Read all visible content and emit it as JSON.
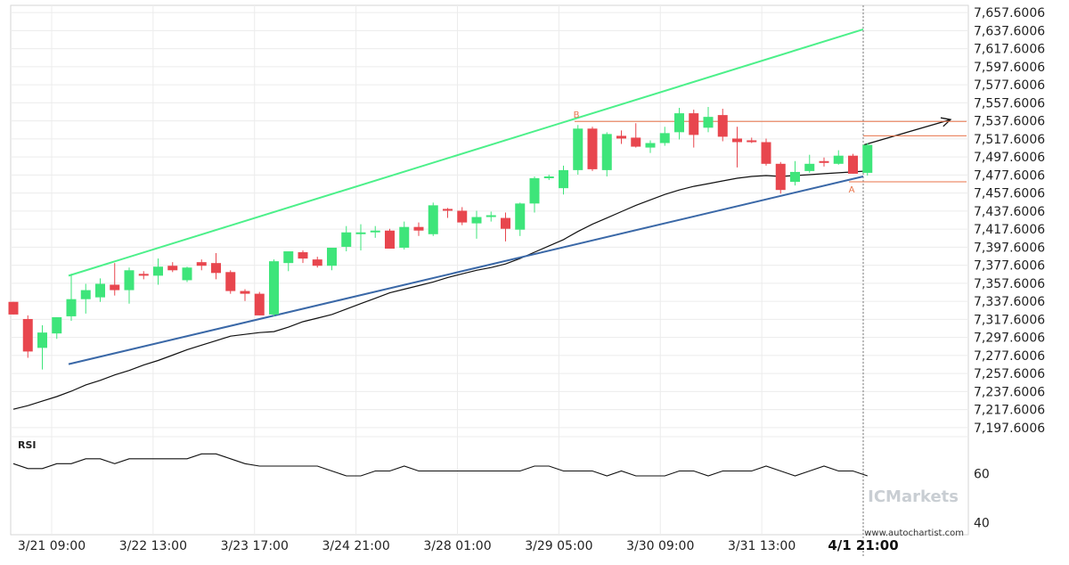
{
  "chart_data": {
    "type": "candlestick",
    "instrument_timeframe_note": "",
    "y_axis": {
      "ticks": [
        "7,657.6006",
        "7,637.6006",
        "7,617.6006",
        "7,597.6006",
        "7,577.6006",
        "7,557.6006",
        "7,537.6006",
        "7,517.6006",
        "7,497.6006",
        "7,477.6006",
        "7,457.6006",
        "7,437.6006",
        "7,417.6006",
        "7,397.6006",
        "7,377.6006",
        "7,357.6006",
        "7,337.6006",
        "7,317.6006",
        "7,297.6006",
        "7,277.6006",
        "7,257.6006",
        "7,237.6006",
        "7,217.6006",
        "7,197.6006"
      ],
      "range": [
        7187.6,
        7665.6
      ],
      "grid": true
    },
    "x_axis": {
      "ticks": [
        "3/21 09:00",
        "3/22 13:00",
        "3/23 17:00",
        "3/24 21:00",
        "3/28 01:00",
        "3/29 05:00",
        "3/30 09:00",
        "3/31 13:00",
        "4/1 21:00"
      ],
      "highlighted_tick": "4/1 21:00"
    },
    "candles": [
      {
        "o": 7337,
        "h": 7337,
        "l": 7323,
        "c": 7323
      },
      {
        "o": 7318,
        "h": 7322,
        "l": 7275,
        "c": 7282
      },
      {
        "o": 7286,
        "h": 7311,
        "l": 7262,
        "c": 7303
      },
      {
        "o": 7302,
        "h": 7320,
        "l": 7296,
        "c": 7320
      },
      {
        "o": 7321,
        "h": 7368,
        "l": 7316,
        "c": 7340
      },
      {
        "o": 7340,
        "h": 7357,
        "l": 7324,
        "c": 7350
      },
      {
        "o": 7342,
        "h": 7363,
        "l": 7337,
        "c": 7357
      },
      {
        "o": 7356,
        "h": 7380,
        "l": 7344,
        "c": 7350
      },
      {
        "o": 7350,
        "h": 7375,
        "l": 7335,
        "c": 7372
      },
      {
        "o": 7368,
        "h": 7371,
        "l": 7362,
        "c": 7366
      },
      {
        "o": 7366,
        "h": 7385,
        "l": 7356,
        "c": 7376
      },
      {
        "o": 7377,
        "h": 7381,
        "l": 7370,
        "c": 7372
      },
      {
        "o": 7361,
        "h": 7376,
        "l": 7359,
        "c": 7375
      },
      {
        "o": 7381,
        "h": 7384,
        "l": 7372,
        "c": 7377
      },
      {
        "o": 7380,
        "h": 7391,
        "l": 7362,
        "c": 7369
      },
      {
        "o": 7370,
        "h": 7372,
        "l": 7346,
        "c": 7349
      },
      {
        "o": 7349,
        "h": 7351,
        "l": 7338,
        "c": 7346
      },
      {
        "o": 7346,
        "h": 7348,
        "l": 7322,
        "c": 7322
      },
      {
        "o": 7323,
        "h": 7384,
        "l": 7321,
        "c": 7382
      },
      {
        "o": 7380,
        "h": 7391,
        "l": 7371,
        "c": 7393
      },
      {
        "o": 7392,
        "h": 7394,
        "l": 7380,
        "c": 7385
      },
      {
        "o": 7384,
        "h": 7387,
        "l": 7375,
        "c": 7377
      },
      {
        "o": 7377,
        "h": 7397,
        "l": 7372,
        "c": 7397
      },
      {
        "o": 7398,
        "h": 7421,
        "l": 7393,
        "c": 7414
      },
      {
        "o": 7414,
        "h": 7423,
        "l": 7394,
        "c": 7414
      },
      {
        "o": 7416,
        "h": 7421,
        "l": 7408,
        "c": 7416
      },
      {
        "o": 7416,
        "h": 7418,
        "l": 7396,
        "c": 7396
      },
      {
        "o": 7397,
        "h": 7426,
        "l": 7395,
        "c": 7420
      },
      {
        "o": 7420,
        "h": 7425,
        "l": 7410,
        "c": 7416
      },
      {
        "o": 7412,
        "h": 7447,
        "l": 7410,
        "c": 7444
      },
      {
        "o": 7440,
        "h": 7441,
        "l": 7430,
        "c": 7438
      },
      {
        "o": 7438,
        "h": 7442,
        "l": 7422,
        "c": 7425
      },
      {
        "o": 7424,
        "h": 7438,
        "l": 7407,
        "c": 7431
      },
      {
        "o": 7433,
        "h": 7437,
        "l": 7426,
        "c": 7433
      },
      {
        "o": 7430,
        "h": 7436,
        "l": 7404,
        "c": 7418
      },
      {
        "o": 7417,
        "h": 7447,
        "l": 7410,
        "c": 7446
      },
      {
        "o": 7446,
        "h": 7476,
        "l": 7436,
        "c": 7474
      },
      {
        "o": 7475,
        "h": 7478,
        "l": 7472,
        "c": 7476
      },
      {
        "o": 7463,
        "h": 7488,
        "l": 7456,
        "c": 7483
      },
      {
        "o": 7483,
        "h": 7533,
        "l": 7478,
        "c": 7529
      },
      {
        "o": 7529,
        "h": 7531,
        "l": 7482,
        "c": 7484
      },
      {
        "o": 7483,
        "h": 7525,
        "l": 7476,
        "c": 7523
      },
      {
        "o": 7521,
        "h": 7527,
        "l": 7512,
        "c": 7518
      },
      {
        "o": 7519,
        "h": 7535,
        "l": 7508,
        "c": 7509
      },
      {
        "o": 7508,
        "h": 7516,
        "l": 7502,
        "c": 7513
      },
      {
        "o": 7513,
        "h": 7531,
        "l": 7510,
        "c": 7524
      },
      {
        "o": 7525,
        "h": 7552,
        "l": 7517,
        "c": 7546
      },
      {
        "o": 7546,
        "h": 7550,
        "l": 7508,
        "c": 7522
      },
      {
        "o": 7530,
        "h": 7553,
        "l": 7525,
        "c": 7542
      },
      {
        "o": 7544,
        "h": 7551,
        "l": 7515,
        "c": 7520
      },
      {
        "o": 7518,
        "h": 7531,
        "l": 7486,
        "c": 7514
      },
      {
        "o": 7516,
        "h": 7519,
        "l": 7513,
        "c": 7514
      },
      {
        "o": 7514,
        "h": 7518,
        "l": 7488,
        "c": 7490
      },
      {
        "o": 7490,
        "h": 7492,
        "l": 7457,
        "c": 7461
      },
      {
        "o": 7470,
        "h": 7493,
        "l": 7466,
        "c": 7481
      },
      {
        "o": 7482,
        "h": 7500,
        "l": 7480,
        "c": 7490
      },
      {
        "o": 7493,
        "h": 7497,
        "l": 7487,
        "c": 7491
      },
      {
        "o": 7490,
        "h": 7505,
        "l": 7489,
        "c": 7499
      },
      {
        "o": 7499,
        "h": 7501,
        "l": 7479,
        "c": 7479
      },
      {
        "o": 7480,
        "h": 7513,
        "l": 7477,
        "c": 7511
      }
    ],
    "moving_average": [
      7218,
      7222,
      7227,
      7232,
      7238,
      7245,
      7250,
      7256,
      7261,
      7267,
      7272,
      7278,
      7284,
      7289,
      7294,
      7299,
      7301,
      7303,
      7304,
      7309,
      7315,
      7319,
      7323,
      7329,
      7335,
      7341,
      7347,
      7351,
      7355,
      7359,
      7364,
      7368,
      7372,
      7375,
      7379,
      7385,
      7392,
      7399,
      7406,
      7415,
      7423,
      7430,
      7437,
      7444,
      7450,
      7456,
      7461,
      7465,
      7468,
      7471,
      7474,
      7476,
      7477,
      7476,
      7477,
      7478,
      7479,
      7480,
      7481,
      7482
    ],
    "channel": {
      "upper_start": 7366,
      "upper_end": 7639,
      "lower_start": 7268,
      "lower_end": 7476,
      "arrow_start": 7511,
      "arrow_end": 7539
    },
    "levels": [
      {
        "name": "B",
        "value": 7537
      },
      {
        "name": "mid",
        "value": 7521
      },
      {
        "name": "A",
        "value": 7470
      }
    ],
    "point_labels": [
      {
        "label": "B",
        "value": 7537
      },
      {
        "label": "A",
        "value": 7470
      }
    ],
    "rsi": {
      "title": "RSI",
      "ticks": [
        "60",
        "40"
      ],
      "range": [
        35,
        75
      ],
      "values": [
        64,
        62,
        62,
        64,
        64,
        66,
        66,
        64,
        66,
        66,
        66,
        66,
        66,
        68,
        68,
        66,
        64,
        63,
        63,
        63,
        63,
        63,
        61,
        59,
        59,
        61,
        61,
        63,
        61,
        61,
        61,
        61,
        61,
        61,
        61,
        61,
        63,
        63,
        61,
        61,
        61,
        59,
        61,
        59,
        59,
        59,
        61,
        61,
        59,
        61,
        61,
        61,
        63,
        61,
        59,
        61,
        63,
        61,
        61,
        59
      ]
    },
    "colors": {
      "bull": "#3ee57a",
      "bear": "#e8464e",
      "upper_line": "#4cf08a",
      "lower_line": "#3a68a7",
      "ma_line": "#111111",
      "level_line": "#e8734a"
    }
  },
  "branding": {
    "watermark": "ICMarkets",
    "website": "www.autochartist.com"
  }
}
